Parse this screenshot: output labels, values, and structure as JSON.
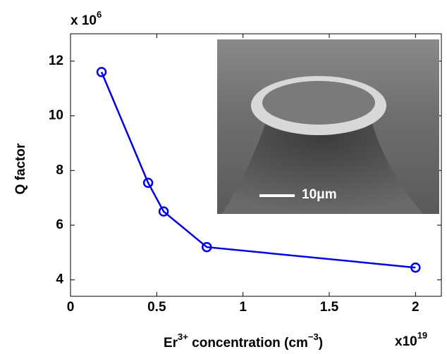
{
  "chart_data": {
    "type": "line",
    "x_label": {
      "base": "Er",
      "superscript": "3+",
      "text": " concentration (cm",
      "exponent": "−3",
      "end": ")"
    },
    "y_label": "Q factor",
    "y_multiplier": {
      "base": "x 10",
      "exponent": "6"
    },
    "x_multiplier": {
      "base": "x10",
      "exponent": "19"
    },
    "inset_scale_label": "10μm",
    "x": [
      0.18,
      0.45,
      0.54,
      0.79,
      2.0
    ],
    "series": [
      {
        "name": "Q factor",
        "color": "#0000e6",
        "values": [
          11.6,
          7.55,
          6.5,
          5.2,
          4.45
        ]
      }
    ],
    "xlim": [
      0,
      2.15
    ],
    "xticks": [
      0,
      0.5,
      1,
      1.5,
      2
    ],
    "ylim": [
      3.4,
      13
    ],
    "yticks": [
      4,
      6,
      8,
      10,
      12
    ],
    "grid": false
  }
}
